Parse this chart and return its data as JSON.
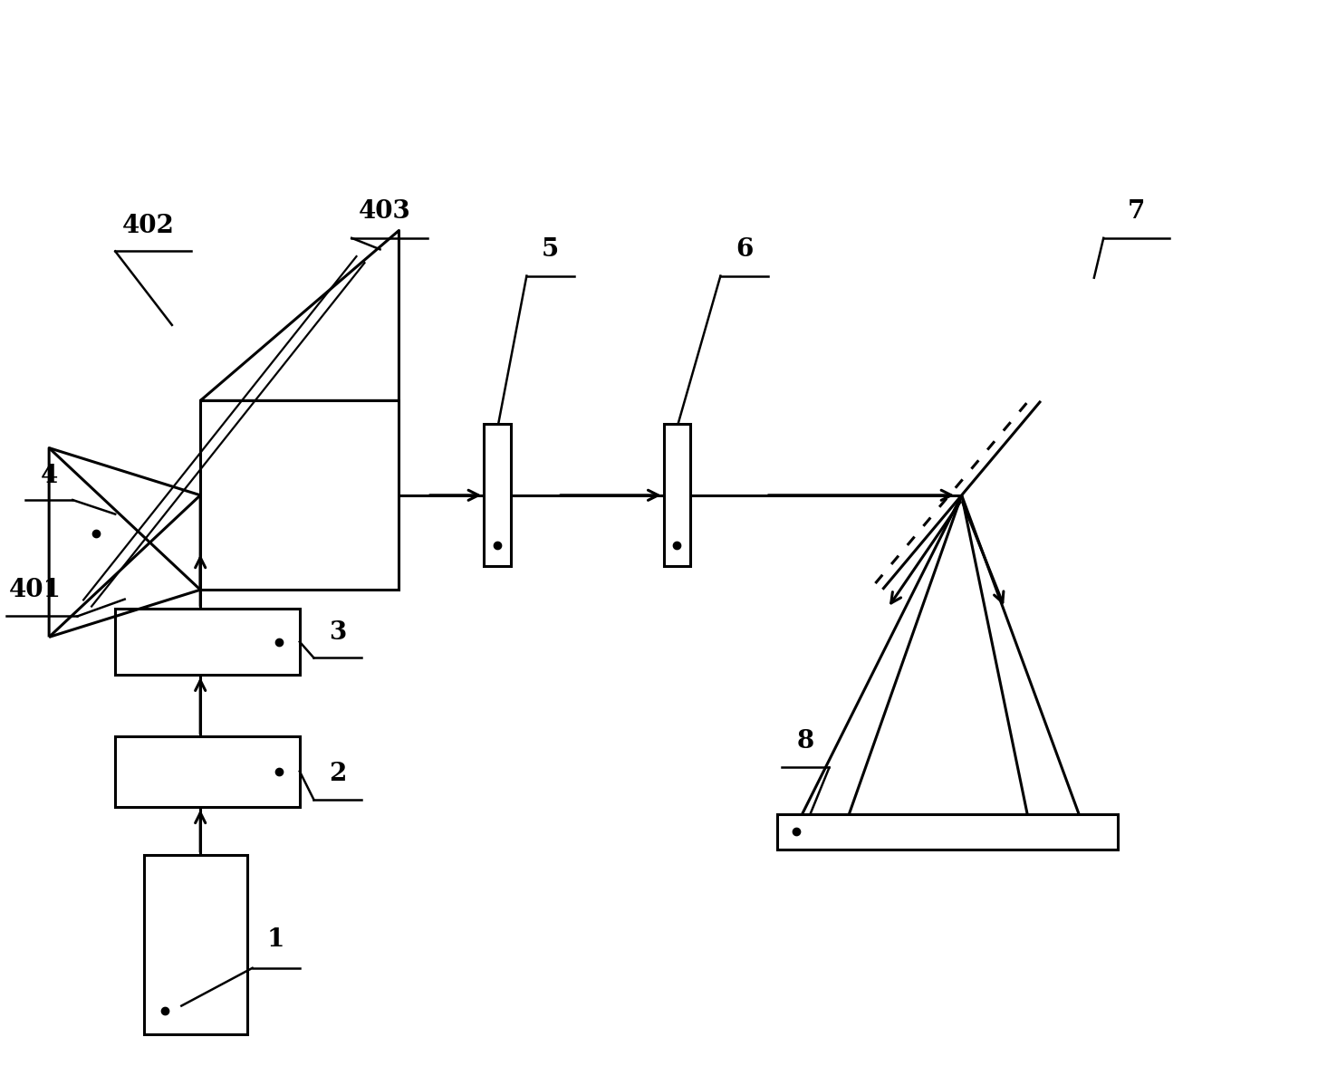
{
  "lw": 2.2,
  "lw_thin": 1.6,
  "bg": "#ffffff",
  "black": "#000000",
  "xlim": [
    0,
    14
  ],
  "ylim": [
    0,
    11
  ],
  "figw": 14.65,
  "figh": 11.98
}
